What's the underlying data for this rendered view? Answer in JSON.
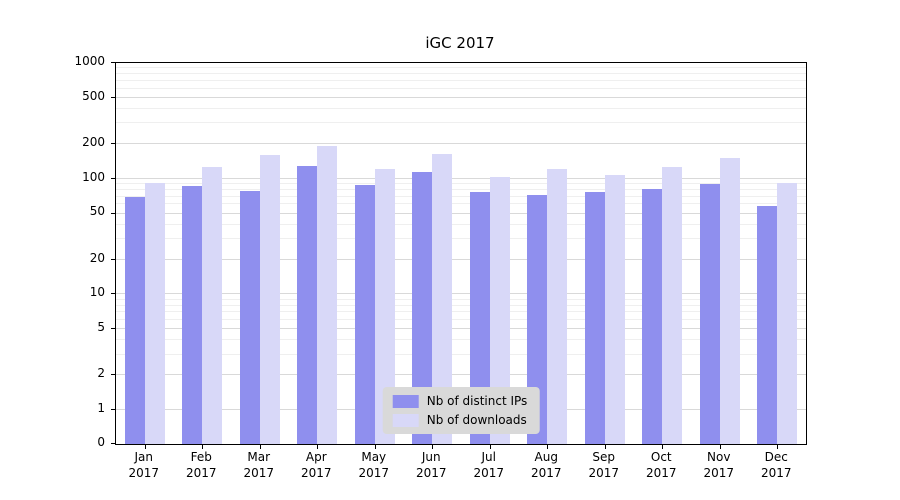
{
  "chart_data": {
    "type": "bar",
    "title": "iGC 2017",
    "categories": [
      "Jan",
      "Feb",
      "Mar",
      "Apr",
      "May",
      "Jun",
      "Jul",
      "Aug",
      "Sep",
      "Oct",
      "Nov",
      "Dec"
    ],
    "year_label": "2017",
    "series": [
      {
        "name": "Nb of distinct IPs",
        "color": "#8f8fee",
        "values": [
          70,
          86,
          78,
          128,
          89,
          115,
          76,
          72,
          77,
          82,
          90,
          58
        ]
      },
      {
        "name": "Nb of downloads",
        "color": "#d8d8f8",
        "values": [
          92,
          126,
          160,
          190,
          122,
          162,
          104,
          122,
          107,
          126,
          150,
          92
        ]
      }
    ],
    "yticks": [
      0,
      1,
      2,
      5,
      10,
      20,
      50,
      100,
      200,
      500,
      1000
    ],
    "ylim": [
      0,
      1000
    ],
    "yscale": "symlog",
    "grid": true,
    "legend_position": "lower center"
  }
}
